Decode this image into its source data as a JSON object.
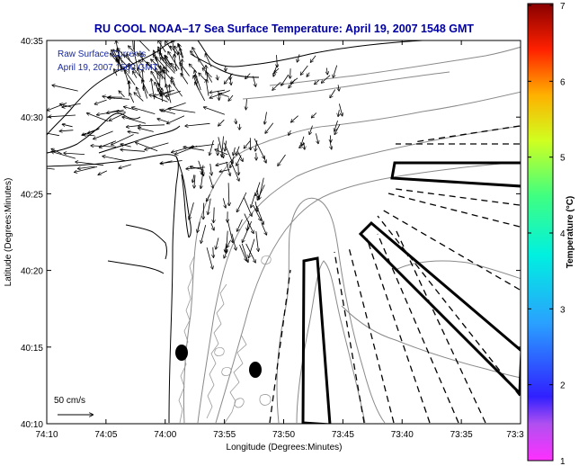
{
  "title": "RU COOL  NOAA–17  Sea Surface Temperature:  April 19, 2007 1548 GMT",
  "legend": {
    "line1": "Raw Surface Currents",
    "line2": "April 19, 2007 1500 GMT"
  },
  "scale_bar": {
    "label": "50 cm/s"
  },
  "x_axis": {
    "label": "Longitude (Degrees:Minutes)",
    "ticks": [
      "74:10",
      "74:05",
      "74:00",
      "73:55",
      "73:50",
      "73:45",
      "73:40",
      "73:35",
      "73:3"
    ]
  },
  "y_axis": {
    "label": "Latitude (Degrees:Minutes)",
    "ticks": [
      "40:35",
      "40:30",
      "40:25",
      "40:20",
      "40:15",
      "40:10"
    ]
  },
  "colorbar": {
    "label": "Temperature (°C)",
    "min": 1,
    "max": 7,
    "ticks": [
      "7",
      "6",
      "5",
      "4",
      "3",
      "2",
      "1"
    ]
  }
}
